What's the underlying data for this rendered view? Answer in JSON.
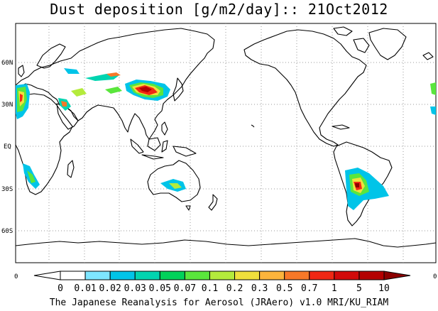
{
  "title": "Dust deposition [g/m2/day]:: 21Oct2012",
  "credit": "The Japanese Reanalysis for Aerosol (JRAero) v1.0 MRI/KU_RIAM",
  "map": {
    "projection": "equirectangular, Pacific-centered",
    "lat_labels": [
      "60N",
      "30N",
      "EQ",
      "30S",
      "60S"
    ],
    "gridlines": "dotted"
  },
  "colorbar": {
    "edge_left": "0",
    "edge_right": "0",
    "ticks": [
      "0",
      "0.01",
      "0.02",
      "0.03",
      "0.05",
      "0.07",
      "0.1",
      "0.2",
      "0.3",
      "0.5",
      "0.7",
      "1",
      "5",
      "10"
    ],
    "colors": [
      "#ffffff",
      "#ffffff",
      "#7ee6ff",
      "#00c4e8",
      "#00d4b0",
      "#00d25a",
      "#5ae63c",
      "#b4eb3c",
      "#f0e03c",
      "#fcb43c",
      "#f87828",
      "#f02814",
      "#d20a0a",
      "#b40000",
      "#8c0000"
    ]
  }
}
